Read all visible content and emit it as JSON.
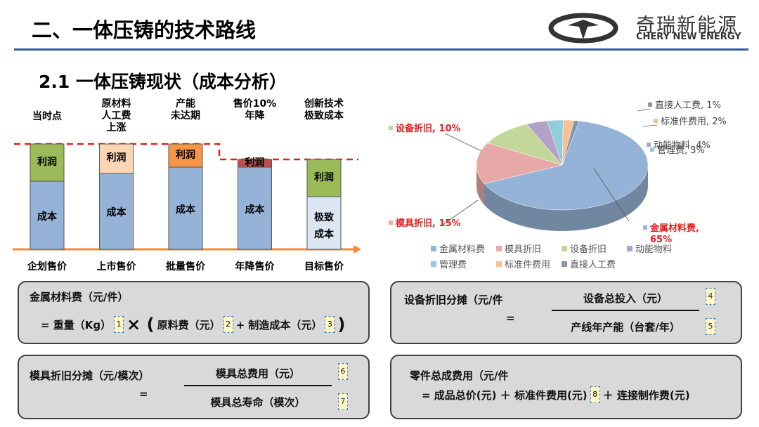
{
  "header": {
    "title": "二、一体压铸的技术路线",
    "logo_cn": "奇瑞新能源",
    "logo_en": "CHERY NEW ENERGY"
  },
  "section_title": "2.1 一体压铸现状（成本分析）",
  "bars": {
    "columns": [
      {
        "top": "当时点",
        "x": "企划售价",
        "profit": "利润",
        "cost": "成本"
      },
      {
        "top": "原材料\n人工费\n上涨",
        "x": "上市售价",
        "profit": "利润",
        "cost": "成本"
      },
      {
        "top": "产能\n未达期",
        "x": "批量售价",
        "profit": "利润",
        "cost": "成本"
      },
      {
        "top": "售价10%\n年降",
        "x": "年降售价",
        "profit": "利润",
        "cost": "成本"
      },
      {
        "top": "创新技术\n极致成本",
        "x": "目标售价",
        "profit": "利润",
        "cost": "极致\n成本"
      }
    ]
  },
  "pie": {
    "type": "pie",
    "categories": [
      "金属材料费",
      "模具折旧",
      "设备折旧",
      "动能物料",
      "管理费",
      "标准件费用",
      "直接人工费"
    ],
    "values": [
      65,
      15,
      10,
      4,
      3,
      2,
      1
    ],
    "value_labels": [
      "金属材料费, 65%",
      "模具折旧, 15%",
      "设备折旧, 10%",
      "动能物料, 4%",
      "管理费, 3%",
      "标准件费用, 2%",
      "直接人工费, 1%"
    ],
    "colors": [
      "#95b3d7",
      "#e6a9a8",
      "#c4d79b",
      "#b3a2c7",
      "#92cddc",
      "#fac090",
      "#8496b0"
    ]
  },
  "formulas": [
    {
      "label": "金属材料费（元/件）",
      "line": [
        "= 重量（Kg）",
        "1",
        "× (",
        "原料费（元）",
        "2",
        "+ 制造成本（元）",
        "3",
        ")"
      ]
    },
    {
      "label": "设备折旧分摊（元/件",
      "eq": "=",
      "numerator": "设备总投入（元）",
      "n1": "4",
      "denominator": "产线年产能（台套/年）",
      "n2": "5"
    },
    {
      "label": "模具折旧分摊（元/模次）",
      "eq": "=",
      "numerator": "模具总费用（元）",
      "n1": "6",
      "denominator": "模具总寿命（模次）",
      "n2": "7"
    },
    {
      "label": "零件总成费用（元/件",
      "line": [
        "= 成品总价(元) ＋ 标准件费用(元)",
        "8",
        "＋ 连接制作费(元)"
      ]
    }
  ]
}
